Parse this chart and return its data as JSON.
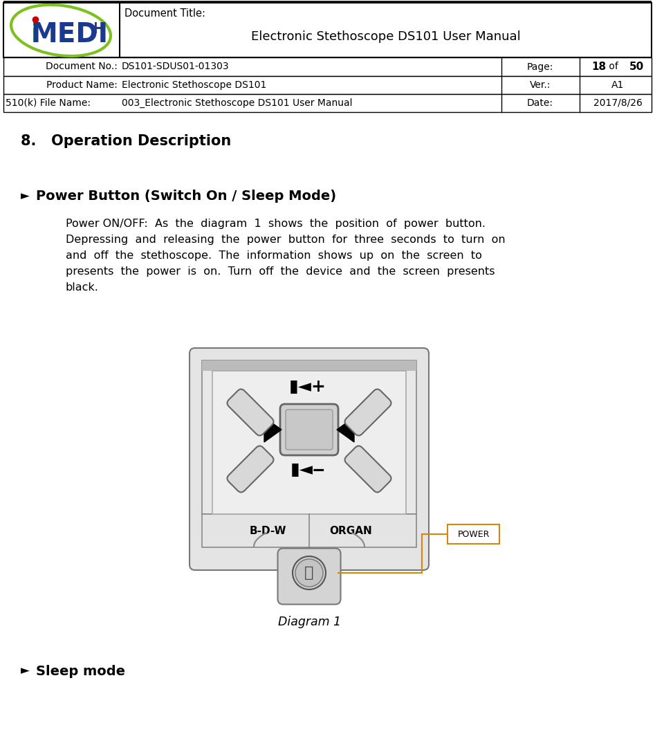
{
  "page_bg": "#ffffff",
  "doc_title_label": "Document Title:",
  "doc_title_main": "Electronic Stethoscope DS101 User Manual",
  "doc_no_label": "Document No.:",
  "doc_no_value": "DS101-SDUS01-01303",
  "page_label": "Page:",
  "page_num": "18",
  "page_of": " of ",
  "page_total": "50",
  "product_label": "Product Name:",
  "product_value": "Electronic Stethoscope DS101",
  "ver_label": "Ver.:",
  "ver_value": "A1",
  "file_label": "510(k) File Name:",
  "file_value": "003_Electronic Stethoscope DS101 User Manual",
  "date_label": "Date:",
  "date_value": "2017/8/26",
  "section_title": "8.   Operation Description",
  "bullet1_title": "Power Button (Switch On / Sleep Mode)",
  "body_line1": "Power ON/OFF:  As  the  diagram  1  shows  the  position  of  power  button.",
  "body_line2": "Depressing  and  releasing  the  power  button  for  three  seconds  to  turn  on",
  "body_line3": "and  off  the  stethoscope.  The  information  shows  up  on  the  screen  to",
  "body_line4": "presents  the  power  is  on.  Turn  off  the  device  and  the  screen  presents",
  "body_line5": "black.",
  "diagram_caption": "Diagram 1",
  "bullet2_title": "Sleep mode",
  "power_label": "POWER",
  "orange_color": "#d4870a",
  "logo_green": "#7dc11e",
  "logo_blue": "#1a3a8f",
  "logo_green_i": "#1a8a1a"
}
